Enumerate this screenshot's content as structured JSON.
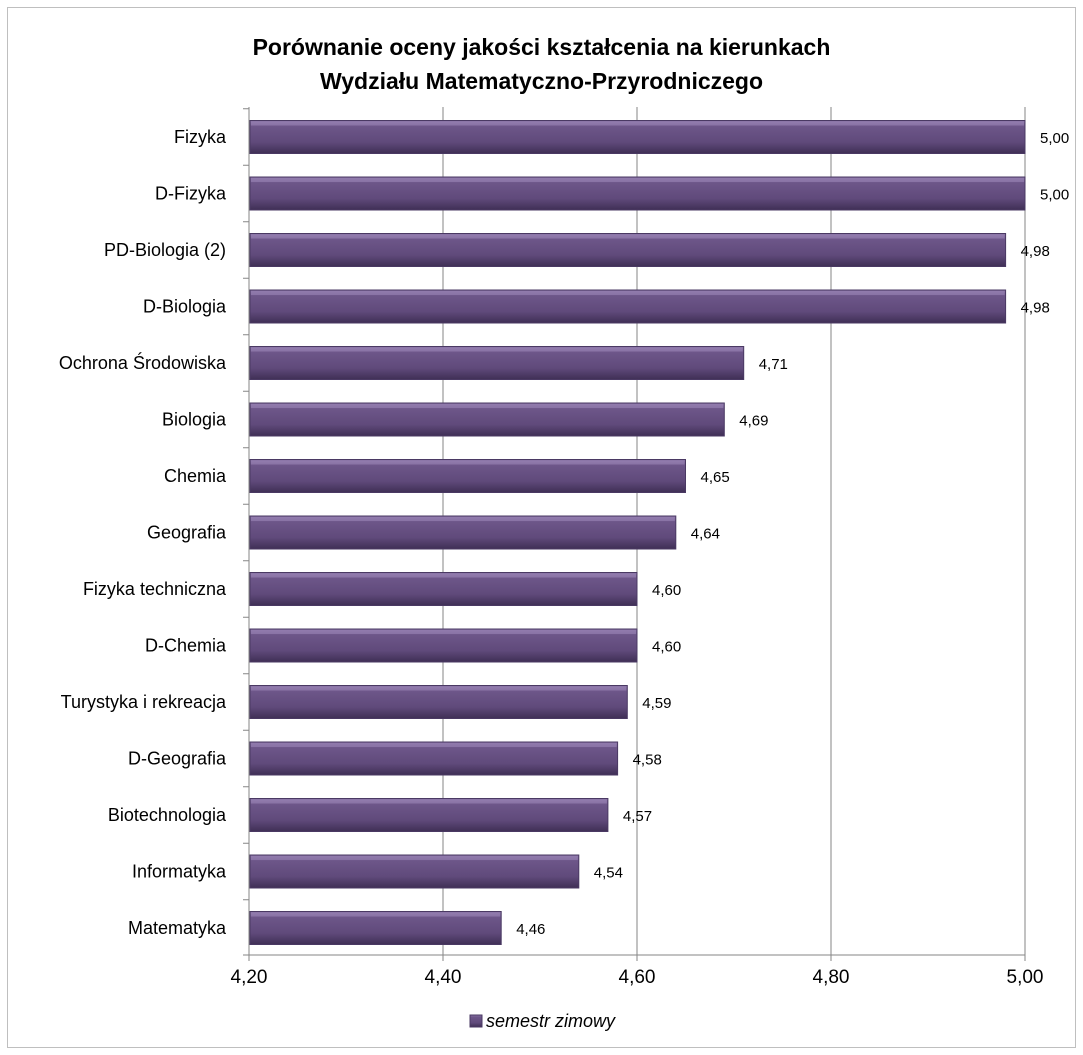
{
  "chart_data": {
    "type": "bar",
    "orientation": "horizontal",
    "title": "Porównanie oceny jakości kształcenia na kierunkach Wydziału Matematyczno-Przyrodniczego",
    "title_lines": [
      "Porównanie oceny jakości kształcenia na kierunkach",
      "Wydziału Matematyczno-Przyrodniczego"
    ],
    "categories": [
      "Fizyka",
      "D-Fizyka",
      "PD-Biologia (2)",
      "D-Biologia",
      "Ochrona Środowiska",
      "Biologia",
      "Chemia",
      "Geografia",
      "Fizyka techniczna",
      "D-Chemia",
      "Turystyka i rekreacja",
      "D-Geografia",
      "Biotechnologia",
      "Informatyka",
      "Matematyka"
    ],
    "series": [
      {
        "name": "semestr zimowy",
        "values": [
          5.0,
          5.0,
          4.98,
          4.98,
          4.71,
          4.69,
          4.65,
          4.64,
          4.6,
          4.6,
          4.59,
          4.58,
          4.57,
          4.54,
          4.46
        ],
        "value_labels": [
          "5,00",
          "5,00",
          "4,98",
          "4,98",
          "4,71",
          "4,69",
          "4,65",
          "4,64",
          "4,60",
          "4,60",
          "4,59",
          "4,58",
          "4,57",
          "4,54",
          "4,46"
        ],
        "color": "#604a7b"
      }
    ],
    "xlim": [
      4.2,
      5.0
    ],
    "xticks": [
      4.2,
      4.4,
      4.6,
      4.8,
      5.0
    ],
    "xtick_labels": [
      "4,20",
      "4,40",
      "4,60",
      "4,80",
      "5,00"
    ],
    "grid": "vertical major gridlines",
    "legend_position": "bottom",
    "colors": {
      "bar": "#604a7b",
      "bar_light": "#8a74a6",
      "bar_dark": "#3f2f55",
      "grid": "#868686"
    }
  }
}
